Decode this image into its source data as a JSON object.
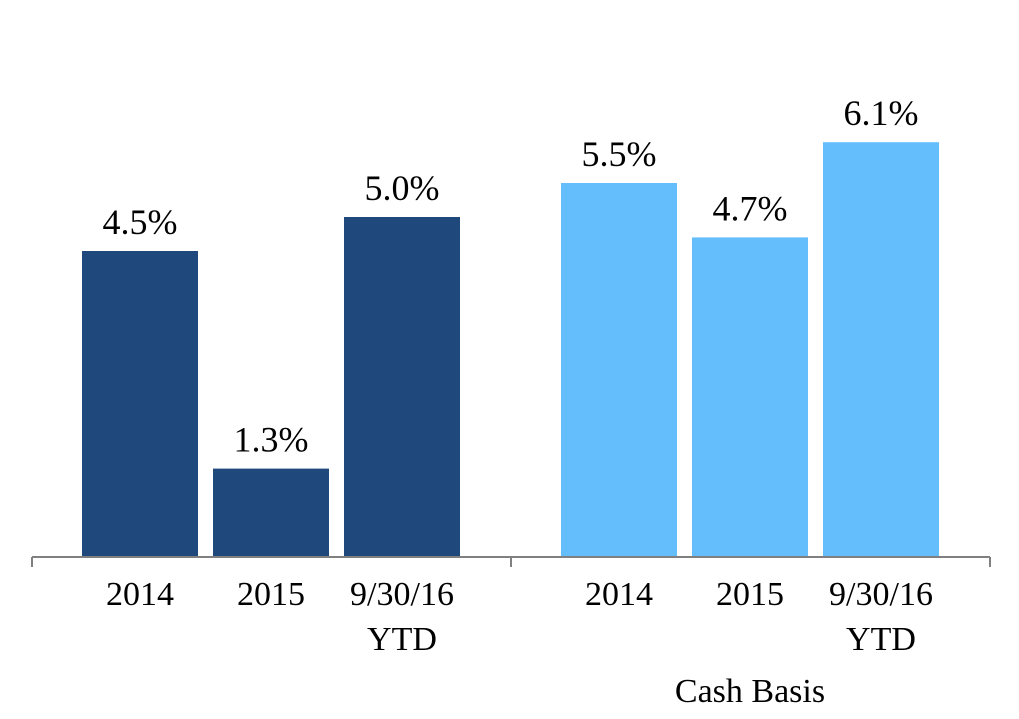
{
  "chart_data": {
    "type": "bar",
    "ylim": [
      0,
      7
    ],
    "grid": false,
    "groups": [
      {
        "name": "",
        "color": "#1F497D",
        "categories": [
          {
            "line1": "2014",
            "line2": ""
          },
          {
            "line1": "2015",
            "line2": ""
          },
          {
            "line1": "9/30/16",
            "line2": "YTD"
          }
        ],
        "values": [
          4.5,
          1.3,
          5.0
        ],
        "labels": [
          "4.5%",
          "1.3%",
          "5.0%"
        ]
      },
      {
        "name": "Cash Basis",
        "color": "#63BEFB",
        "categories": [
          {
            "line1": "2014",
            "line2": ""
          },
          {
            "line1": "2015",
            "line2": ""
          },
          {
            "line1": "9/30/16",
            "line2": "YTD"
          }
        ],
        "values": [
          5.5,
          4.7,
          6.1
        ],
        "labels": [
          "5.5%",
          "4.7%",
          "6.1%"
        ]
      }
    ]
  }
}
